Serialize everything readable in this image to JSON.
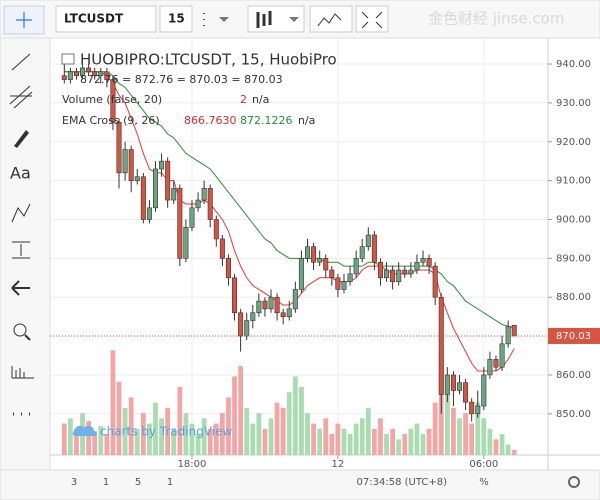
{
  "toolbar": {
    "symbol": "LTCUSDT",
    "interval": "15"
  },
  "side_tools": {
    "text_tool": "Aa"
  },
  "watermark": "金色财经 jinse.com",
  "credit": "charts by TradingView",
  "footer": {
    "ranges": [
      "3",
      "1",
      "5",
      "1"
    ],
    "clock": "07:34:58 (UTC+8)",
    "scale": "%"
  },
  "chart_data": {
    "type": "candlestick",
    "title": "HUOBIPRO:LTCUSDT, 15, HuobiPro",
    "ohlc_legend": "872.76 = 872.76 = 870.03 = 870.03",
    "categories": [
      null,
      null,
      null,
      null,
      null,
      null,
      null,
      null,
      null,
      null,
      null,
      null,
      null,
      null,
      null,
      null,
      null,
      null,
      null,
      null,
      null,
      "18:00",
      null,
      null,
      null,
      null,
      null,
      null,
      null,
      null,
      null,
      null,
      null,
      null,
      null,
      null,
      null,
      null,
      null,
      null,
      null,
      null,
      null,
      null,
      null,
      "12",
      null,
      null,
      null,
      null,
      null,
      null,
      null,
      null,
      null,
      null,
      null,
      null,
      null,
      null,
      null,
      null,
      null,
      null,
      null,
      null,
      null,
      null,
      null,
      "06:00",
      null,
      null,
      null,
      null,
      null
    ],
    "ohlc": [
      [
        937,
        940,
        935,
        936
      ],
      [
        936,
        939,
        935,
        938
      ],
      [
        938,
        939,
        936,
        937
      ],
      [
        937,
        940,
        936,
        939
      ],
      [
        939,
        940,
        937,
        938
      ],
      [
        938,
        939,
        936,
        937
      ],
      [
        937,
        939,
        935,
        938
      ],
      [
        938,
        939,
        934,
        936
      ],
      [
        936,
        937,
        923,
        925
      ],
      [
        925,
        926,
        908,
        912
      ],
      [
        912,
        920,
        910,
        918
      ],
      [
        918,
        919,
        907,
        910
      ],
      [
        910,
        913,
        909,
        911
      ],
      [
        911,
        912,
        899,
        900
      ],
      [
        900,
        905,
        899,
        903
      ],
      [
        903,
        915,
        902,
        913
      ],
      [
        913,
        917,
        911,
        915
      ],
      [
        915,
        916,
        903,
        905
      ],
      [
        905,
        910,
        904,
        908
      ],
      [
        908,
        909,
        888,
        890
      ],
      [
        890,
        900,
        889,
        898
      ],
      [
        898,
        905,
        897,
        903
      ],
      [
        903,
        907,
        902,
        905
      ],
      [
        905,
        910,
        904,
        908
      ],
      [
        908,
        909,
        898,
        900
      ],
      [
        900,
        901,
        893,
        895
      ],
      [
        895,
        896,
        888,
        890
      ],
      [
        890,
        891,
        883,
        885
      ],
      [
        885,
        886,
        874,
        876
      ],
      [
        876,
        877,
        866,
        870
      ],
      [
        870,
        876,
        869,
        874
      ],
      [
        874,
        878,
        872,
        876
      ],
      [
        876,
        881,
        875,
        879
      ],
      [
        879,
        880,
        875,
        877
      ],
      [
        877,
        882,
        876,
        880
      ],
      [
        880,
        881,
        874,
        876
      ],
      [
        876,
        877,
        873,
        875
      ],
      [
        875,
        879,
        874,
        877
      ],
      [
        877,
        884,
        876,
        882
      ],
      [
        882,
        892,
        881,
        890
      ],
      [
        890,
        895,
        889,
        893
      ],
      [
        893,
        894,
        887,
        889
      ],
      [
        889,
        892,
        888,
        890
      ],
      [
        890,
        891,
        885,
        887
      ],
      [
        887,
        888,
        883,
        885
      ],
      [
        885,
        886,
        880,
        882
      ],
      [
        882,
        886,
        881,
        884
      ],
      [
        884,
        888,
        883,
        886
      ],
      [
        886,
        892,
        885,
        890
      ],
      [
        890,
        895,
        889,
        893
      ],
      [
        893,
        898,
        892,
        896
      ],
      [
        896,
        897,
        887,
        889
      ],
      [
        889,
        890,
        883,
        885
      ],
      [
        885,
        889,
        884,
        887
      ],
      [
        887,
        888,
        882,
        884
      ],
      [
        884,
        889,
        883,
        887
      ],
      [
        887,
        888,
        885,
        886
      ],
      [
        886,
        889,
        885,
        887
      ],
      [
        887,
        891,
        886,
        889
      ],
      [
        889,
        892,
        888,
        890
      ],
      [
        890,
        891,
        886,
        888
      ],
      [
        888,
        889,
        878,
        880
      ],
      [
        880,
        881,
        850,
        855
      ],
      [
        855,
        862,
        853,
        860
      ],
      [
        860,
        861,
        852,
        856
      ],
      [
        856,
        860,
        855,
        858
      ],
      [
        858,
        859,
        851,
        853
      ],
      [
        853,
        854,
        848,
        850
      ],
      [
        850,
        856,
        849,
        852
      ],
      [
        852,
        862,
        851,
        860
      ],
      [
        860,
        866,
        859,
        864
      ],
      [
        864,
        865,
        861,
        862
      ],
      [
        862,
        870,
        861,
        868
      ],
      [
        868,
        874,
        867,
        872.5
      ],
      [
        872.76,
        872.76,
        870.03,
        870.03
      ]
    ],
    "up_color": "#6ba583",
    "down_color": "#d75442",
    "ylim": [
      839.4,
      946.7
    ],
    "yticks": [
      {
        "value": 850,
        "label": "850.00"
      },
      {
        "value": 860,
        "label": "860.00"
      },
      {
        "value": 870,
        "label": "870.00"
      },
      {
        "value": 880,
        "label": "880.00"
      },
      {
        "value": 890,
        "label": "890.00"
      },
      {
        "value": 900,
        "label": "900.00"
      },
      {
        "value": 910,
        "label": "910.00"
      },
      {
        "value": 920,
        "label": "920.00"
      },
      {
        "value": 930,
        "label": "930.00"
      },
      {
        "value": 940,
        "label": "940.00"
      }
    ],
    "grid": true,
    "last_price": 870.03,
    "volume": {
      "name": "Volume (false, 20)",
      "status": "n/a",
      "ylim": [
        0,
        42
      ],
      "up_color": "#a9dcb0",
      "down_color": "#f4a6a6",
      "values": [
        12,
        14,
        10,
        16,
        13,
        9,
        11,
        8,
        40,
        28,
        18,
        22,
        10,
        16,
        12,
        20,
        14,
        18,
        10,
        26,
        16,
        12,
        8,
        14,
        10,
        12,
        16,
        22,
        30,
        34,
        18,
        12,
        16,
        10,
        14,
        20,
        18,
        24,
        30,
        26,
        16,
        12,
        10,
        14,
        8,
        12,
        10,
        8,
        12,
        14,
        18,
        10,
        14,
        8,
        10,
        6,
        8,
        10,
        12,
        8,
        10,
        20,
        38,
        24,
        18,
        14,
        16,
        12,
        20,
        14,
        10,
        6,
        8,
        4,
        2
      ]
    },
    "indicator": {
      "name": "EMA Cross (9, 26)",
      "status": "n/a"
    },
    "series": [
      {
        "name": "EMA 9",
        "color": "#e53935",
        "last_value_label": "866.7630",
        "values": [
          938,
          938,
          938,
          938,
          938,
          938,
          938,
          937,
          935,
          932,
          930,
          926,
          922,
          917,
          913,
          912,
          912,
          910,
          910,
          905,
          904,
          904,
          904,
          905,
          904,
          902,
          900,
          897,
          892,
          888,
          885,
          883,
          882,
          881,
          880,
          879,
          878,
          878,
          879,
          881,
          883,
          884,
          885,
          885,
          885,
          884,
          884,
          884,
          885,
          887,
          888,
          888,
          888,
          887,
          886,
          886,
          886,
          886,
          887,
          887,
          887,
          886,
          880,
          876,
          872,
          869,
          866,
          863,
          861,
          861,
          861,
          861,
          862,
          864,
          866.763
        ]
      },
      {
        "name": "EMA 26",
        "color": "#2e8b3a",
        "last_value_label": "872.1226",
        "values": [
          938,
          938,
          938,
          938,
          938,
          938,
          938,
          938,
          937,
          935,
          934,
          932,
          930,
          928,
          926,
          925,
          924,
          922,
          921,
          919,
          917,
          916,
          915,
          914,
          913,
          911,
          909,
          907,
          905,
          903,
          901,
          899,
          897,
          895,
          894,
          892,
          891,
          890,
          890,
          890,
          890,
          890,
          890,
          889,
          889,
          889,
          888,
          888,
          888,
          888,
          889,
          889,
          888,
          888,
          888,
          888,
          888,
          888,
          888,
          888,
          888,
          887,
          886,
          884,
          883,
          881,
          879,
          878,
          877,
          876,
          875,
          874,
          873,
          872.5,
          872.1226
        ]
      }
    ]
  }
}
